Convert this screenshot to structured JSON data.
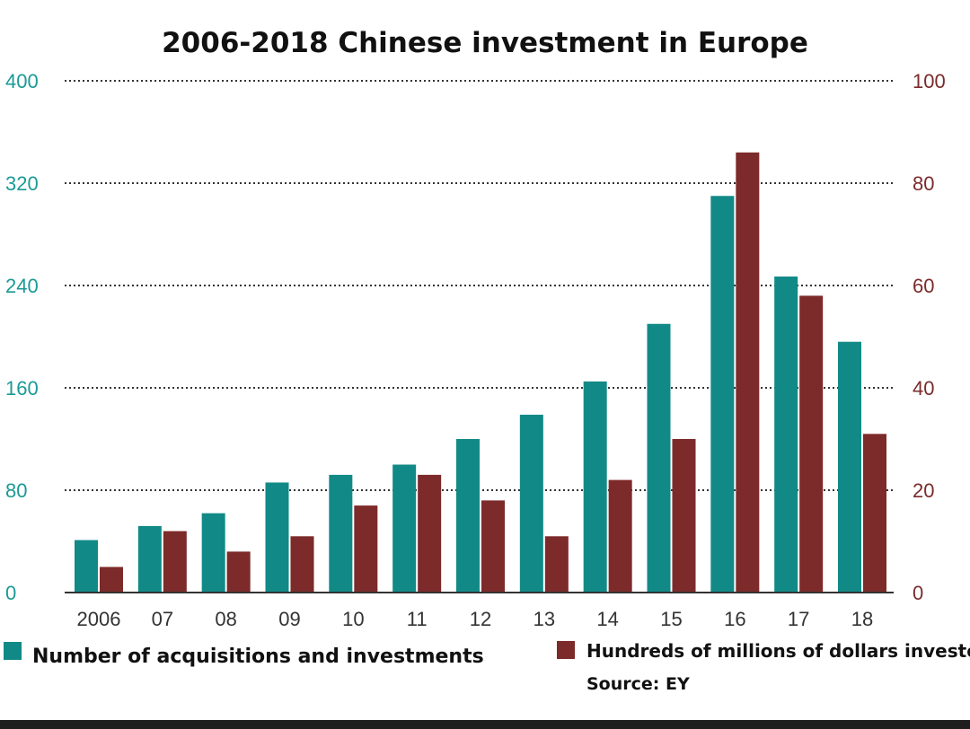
{
  "chart_data": {
    "type": "bar",
    "title": "2006-2018 Chinese investment in Europe",
    "categories": [
      "2006",
      "07",
      "08",
      "09",
      "10",
      "11",
      "12",
      "13",
      "14",
      "15",
      "16",
      "17",
      "18"
    ],
    "series": [
      {
        "name": "Number of acquisitions and investments",
        "axis": "left",
        "color": "#118a87",
        "values": [
          41,
          52,
          62,
          86,
          92,
          100,
          120,
          139,
          165,
          210,
          310,
          247,
          196
        ]
      },
      {
        "name": "Hundreds of millions of dollars invested",
        "axis": "right",
        "color": "#7d2a2a",
        "values": [
          5,
          12,
          8,
          11,
          17,
          23,
          18,
          11,
          22,
          30,
          86,
          58,
          31
        ]
      }
    ],
    "y_left": {
      "min": 0,
      "max": 400,
      "ticks": [
        0,
        80,
        160,
        240,
        320,
        400
      ]
    },
    "y_right": {
      "min": 0,
      "max": 100,
      "ticks": [
        0,
        20,
        40,
        60,
        80,
        100
      ]
    },
    "grid": "dotted horizontal",
    "legend": "bottom",
    "source": "Source: EY"
  }
}
